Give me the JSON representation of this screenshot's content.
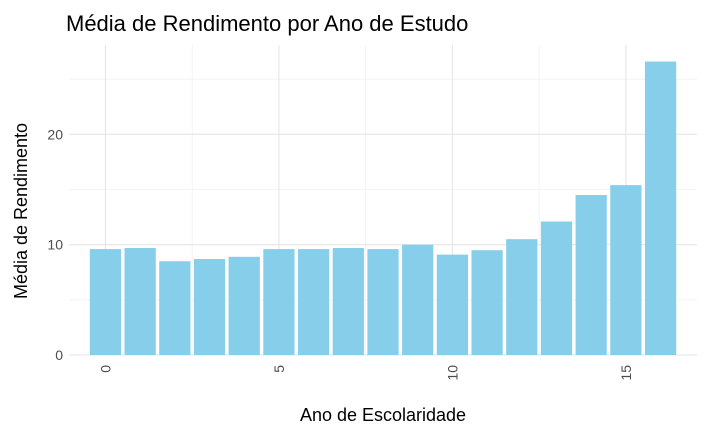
{
  "chart_data": {
    "type": "bar",
    "title": "Média de Rendimento por Ano de Estudo",
    "xlabel": "Ano de Escolaridade",
    "ylabel": "Média de Rendimento",
    "x": [
      0,
      1,
      2,
      3,
      4,
      5,
      6,
      7,
      8,
      9,
      10,
      11,
      12,
      13,
      14,
      15,
      16
    ],
    "values": [
      9.6,
      9.7,
      8.5,
      8.7,
      8.9,
      9.6,
      9.6,
      9.7,
      9.6,
      10.0,
      9.1,
      9.5,
      10.5,
      12.1,
      14.5,
      15.4,
      26.6
    ],
    "xticks": [
      0,
      5,
      10,
      15
    ],
    "yticks": [
      0,
      10,
      20
    ],
    "xlim": [
      -1.05,
      17.05
    ],
    "ylim": [
      0,
      28.1
    ],
    "bar_color": "#87CEEB",
    "grid": true,
    "legend": "none"
  }
}
